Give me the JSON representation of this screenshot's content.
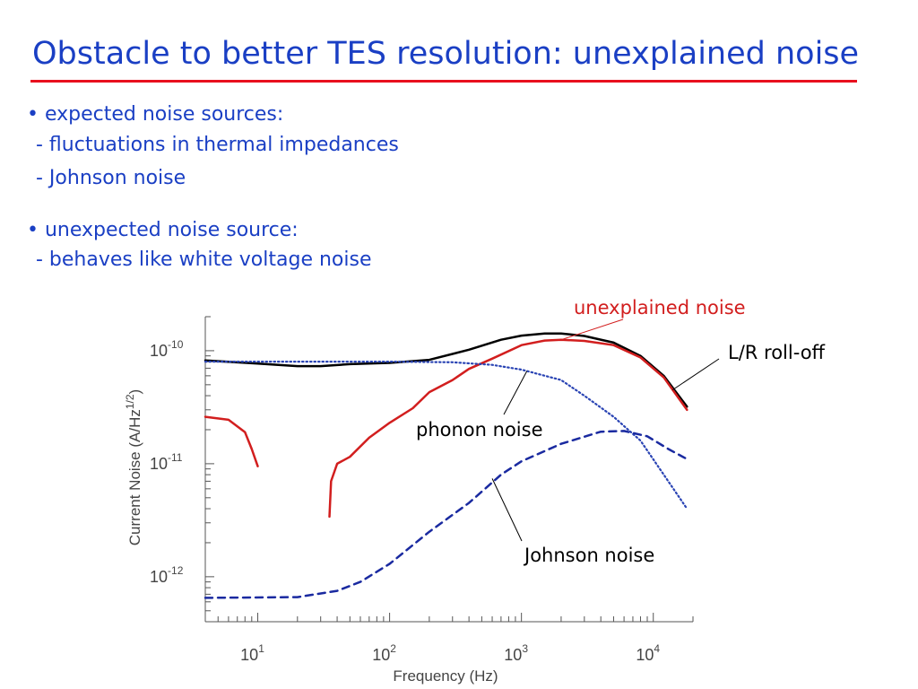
{
  "slide": {
    "title": "Obstacle to better TES resolution: unexplained noise",
    "title_color": "#1a3fc4",
    "rule_color": "#e8101e",
    "bullets": [
      {
        "text": "• expected noise sources:"
      },
      {
        "text": "- fluctuations in thermal impedances"
      },
      {
        "text": "- Johnson noise"
      },
      {
        "text": "• unexpected noise source:"
      },
      {
        "text": "- behaves like white voltage noise"
      }
    ]
  },
  "chart_data": {
    "type": "line",
    "x_scale": "log",
    "y_scale": "log",
    "xlim": [
      4,
      20000
    ],
    "ylim": [
      4e-13,
      2e-10
    ],
    "xlabel": "Frequency (Hz)",
    "ylabel": "Current Noise (A/Hz^1/2)",
    "x_ticks": [
      {
        "value": 10,
        "base": "10",
        "exp": "1"
      },
      {
        "value": 100,
        "base": "10",
        "exp": "2"
      },
      {
        "value": 1000,
        "base": "10",
        "exp": "3"
      },
      {
        "value": 10000,
        "base": "10",
        "exp": "4"
      }
    ],
    "y_ticks": [
      {
        "value": 1e-10,
        "base": "10",
        "exp": "-10"
      },
      {
        "value": 1e-11,
        "base": "10",
        "exp": "-11"
      },
      {
        "value": 1e-12,
        "base": "10",
        "exp": "-12"
      }
    ],
    "series": [
      {
        "color": "#000000",
        "style": "solid",
        "points": [
          [
            4,
            8.2e-11
          ],
          [
            10,
            7.7e-11
          ],
          [
            20,
            7.3e-11
          ],
          [
            30,
            7.3e-11
          ],
          [
            50,
            7.6e-11
          ],
          [
            100,
            7.8e-11
          ],
          [
            200,
            8.3e-11
          ],
          [
            400,
            1.02e-10
          ],
          [
            700,
            1.25e-10
          ],
          [
            1000,
            1.36e-10
          ],
          [
            1500,
            1.42e-10
          ],
          [
            2000,
            1.42e-10
          ],
          [
            3000,
            1.35e-10
          ],
          [
            5000,
            1.18e-10
          ],
          [
            8000,
            9e-11
          ],
          [
            12000,
            6e-11
          ],
          [
            18000,
            3.2e-11
          ]
        ]
      },
      {
        "color": "#d21e1e",
        "style": "solid",
        "segments": [
          [
            [
              4,
              2.6e-11
            ],
            [
              6,
              2.45e-11
            ],
            [
              8,
              1.9e-11
            ],
            [
              9,
              1.35e-11
            ],
            [
              10,
              9.5e-12
            ]
          ],
          [
            [
              35,
              3.4e-12
            ],
            [
              36,
              7e-12
            ],
            [
              40,
              1e-11
            ],
            [
              50,
              1.15e-11
            ],
            [
              70,
              1.7e-11
            ],
            [
              100,
              2.3e-11
            ],
            [
              150,
              3.1e-11
            ],
            [
              200,
              4.3e-11
            ],
            [
              300,
              5.5e-11
            ],
            [
              400,
              6.9e-11
            ],
            [
              600,
              8.5e-11
            ],
            [
              1000,
              1.12e-10
            ],
            [
              1500,
              1.23e-10
            ],
            [
              2000,
              1.25e-10
            ],
            [
              3000,
              1.22e-10
            ],
            [
              5000,
              1.12e-10
            ],
            [
              8000,
              8.7e-11
            ],
            [
              12000,
              5.8e-11
            ],
            [
              18000,
              3e-11
            ]
          ]
        ]
      },
      {
        "color": "#2a44b4",
        "style": "dotted",
        "points": [
          [
            4,
            8e-11
          ],
          [
            100,
            8e-11
          ],
          [
            300,
            7.9e-11
          ],
          [
            600,
            7.5e-11
          ],
          [
            1000,
            6.8e-11
          ],
          [
            2000,
            5.5e-11
          ],
          [
            3000,
            4e-11
          ],
          [
            5000,
            2.6e-11
          ],
          [
            8000,
            1.6e-11
          ],
          [
            12000,
            8e-12
          ],
          [
            18000,
            4e-12
          ]
        ]
      },
      {
        "color": "#1a2aa0",
        "style": "dashed",
        "points": [
          [
            4,
            6.5e-13
          ],
          [
            20,
            6.6e-13
          ],
          [
            40,
            7.5e-13
          ],
          [
            60,
            9e-13
          ],
          [
            100,
            1.3e-12
          ],
          [
            200,
            2.5e-12
          ],
          [
            400,
            4.5e-12
          ],
          [
            700,
            8e-12
          ],
          [
            1000,
            1.05e-11
          ],
          [
            2000,
            1.5e-11
          ],
          [
            4000,
            1.92e-11
          ],
          [
            6000,
            1.95e-11
          ],
          [
            9000,
            1.75e-11
          ],
          [
            13000,
            1.35e-11
          ],
          [
            18000,
            1.1e-11
          ]
        ]
      }
    ],
    "annotations": [
      {
        "text": "unexplained noise",
        "color": "#d21e1e",
        "target": [
          2000,
          1.25e-10
        ]
      },
      {
        "text": "L/R roll-off",
        "color": "#000000",
        "target": [
          14000,
          4.5e-11
        ]
      },
      {
        "text": "phonon noise",
        "color": "#000000",
        "target": [
          1100,
          6.6e-11
        ]
      },
      {
        "text": "Johnson noise",
        "color": "#000000",
        "target": [
          600,
          7.4e-12
        ]
      }
    ]
  }
}
